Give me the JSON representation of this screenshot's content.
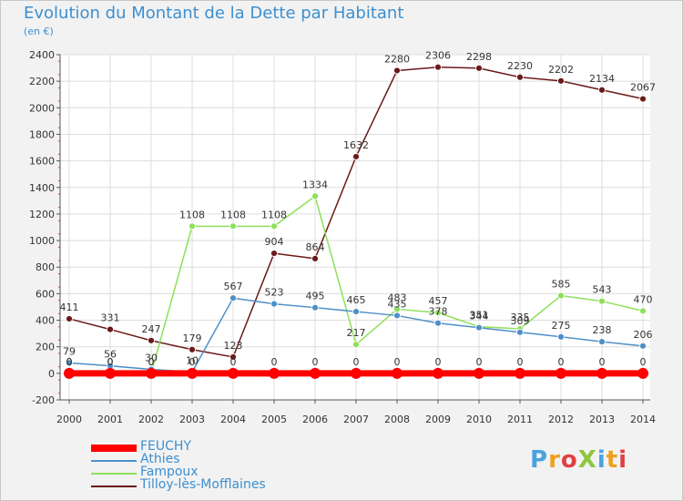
{
  "header": {
    "title": "Evolution du Montant de la Dette par Habitant",
    "subtitle": "(en €)"
  },
  "logo": {
    "text": "ProXiti"
  },
  "colors": {
    "title": "#3c8fd0",
    "grid": "#dcdcdc",
    "axis": "#555555",
    "feuchy": "#ff0000",
    "athies": "#4f8fc8",
    "fampoux": "#8de05a",
    "tilloy": "#6b1a1a"
  },
  "chart_data": {
    "type": "line",
    "x": [
      "2000",
      "2001",
      "2002",
      "2003",
      "2004",
      "2005",
      "2006",
      "2007",
      "2008",
      "2009",
      "2010",
      "2011",
      "2012",
      "2013",
      "2014"
    ],
    "ylim": [
      -200,
      2400
    ],
    "yticks": [
      "-200",
      "0",
      "200",
      "400",
      "600",
      "800",
      "1000",
      "1200",
      "1400",
      "1600",
      "1800",
      "2000",
      "2200",
      "2400"
    ],
    "grid": true,
    "legend_position": "bottom-left",
    "series": [
      {
        "name": "FEUCHY",
        "color": "#ff0000",
        "values": [
          0,
          0,
          0,
          0,
          0,
          0,
          0,
          0,
          0,
          0,
          0,
          0,
          0,
          0,
          0
        ],
        "labels": [
          "0",
          "0",
          "0",
          "0",
          "0",
          "0",
          "0",
          "0",
          "0",
          "0",
          "0",
          "0",
          "0",
          "0",
          "0"
        ]
      },
      {
        "name": "Athies",
        "color": "#4f8fc8",
        "values": [
          79,
          56,
          30,
          10,
          567,
          523,
          495,
          465,
          435,
          378,
          344,
          309,
          275,
          238,
          206
        ],
        "labels": [
          "79",
          "56",
          "30",
          "10",
          "567",
          "523",
          "495",
          "465",
          "435",
          "378",
          "344",
          "309",
          "275",
          "238",
          "206"
        ]
      },
      {
        "name": "Fampoux",
        "color": "#8de05a",
        "values": [
          0,
          0,
          0,
          1108,
          1108,
          1108,
          1334,
          217,
          483,
          457,
          351,
          335,
          585,
          543,
          470
        ],
        "labels": [
          "0",
          "0",
          "0",
          "1108",
          "1108",
          "1108",
          "1334",
          "217",
          "483",
          "457",
          "351",
          "335",
          "585",
          "543",
          "470"
        ]
      },
      {
        "name": "Tilloy-lès-Mofflaines",
        "color": "#6b1a1a",
        "values": [
          411,
          331,
          247,
          179,
          123,
          904,
          864,
          1632,
          2280,
          2306,
          2298,
          2230,
          2202,
          2134,
          2067
        ],
        "labels": [
          "411",
          "331",
          "247",
          "179",
          "123",
          "904",
          "864",
          "1632",
          "2280",
          "2306",
          "2298",
          "2230",
          "2202",
          "2134",
          "2067"
        ]
      }
    ]
  }
}
